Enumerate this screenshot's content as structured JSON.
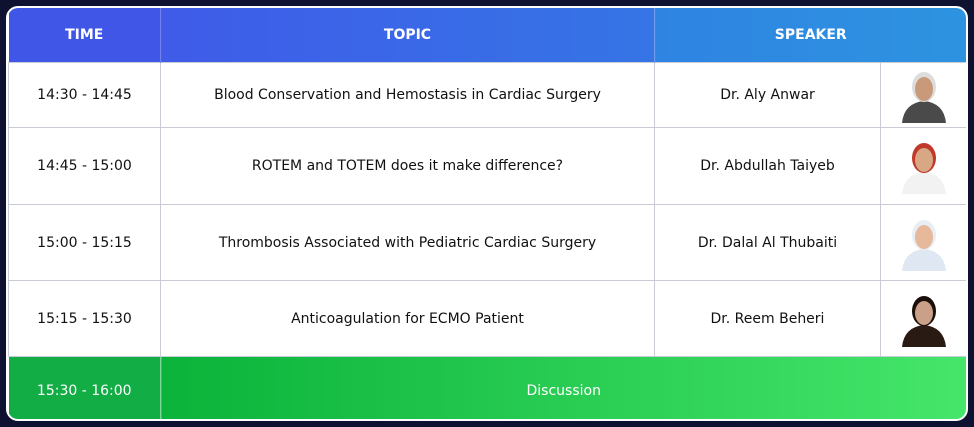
{
  "header": {
    "columns": [
      "TIME",
      "TOPIC",
      "SPEAKER"
    ]
  },
  "table": {
    "rows": [
      [
        "14:30 - 14:45",
        "Blood Conservation and Hemostasis in Cardiac Surgery",
        "Dr. Aly Anwar"
      ],
      [
        "14:45 - 15:00",
        "ROTEM and TOTEM does it make difference?",
        "Dr. Abdullah Taiyeb"
      ],
      [
        "15:00 - 15:15",
        "Thrombosis Associated with Pediatric Cardiac Surgery",
        "Dr. Dalal Al Thubaiti"
      ],
      [
        "15:15 - 15:30",
        "Anticoagulation for ECMO Patient",
        "Dr. Reem Beheri"
      ]
    ]
  },
  "footer": {
    "time": "15:30 - 16:00",
    "label": "Discussion"
  }
}
